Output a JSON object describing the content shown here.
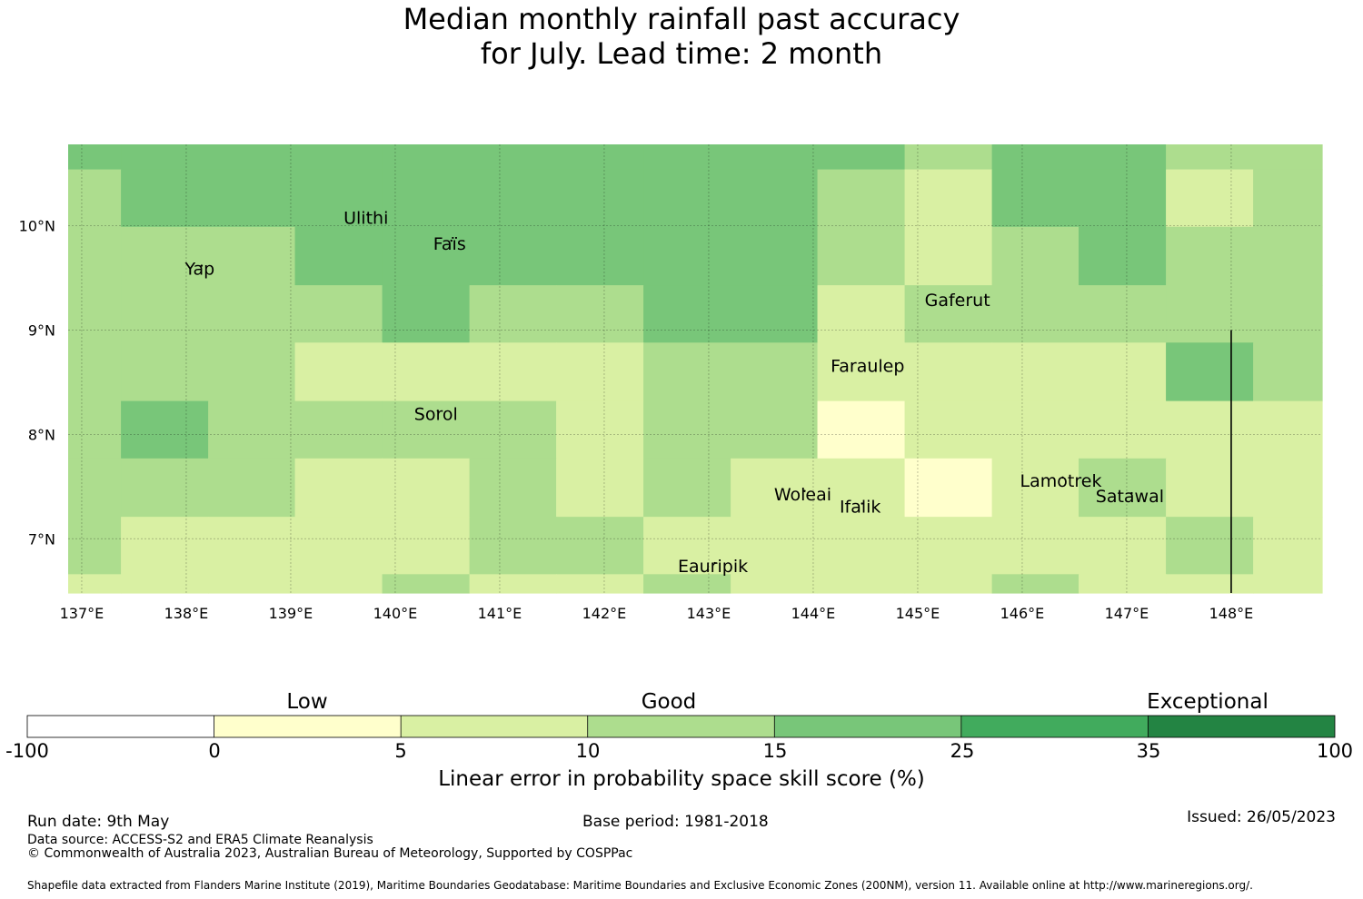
{
  "title": {
    "line1": "Median monthly rainfall past accuracy",
    "line2": "for July. Lead time: 2 month"
  },
  "map": {
    "lon_ticks": [
      "137°E",
      "138°E",
      "139°E",
      "140°E",
      "141°E",
      "142°E",
      "143°E",
      "144°E",
      "145°E",
      "146°E",
      "147°E",
      "148°E"
    ],
    "lat_ticks": [
      "10°N",
      "9°N",
      "8°N",
      "7°N"
    ],
    "lon_range": [
      136.87,
      148.87
    ],
    "lat_range": [
      6.48,
      10.78
    ],
    "grid_lon_edges": [
      136.87,
      137.375,
      138.21,
      139.04,
      139.875,
      140.71,
      141.54,
      142.375,
      143.21,
      144.04,
      144.875,
      145.71,
      146.54,
      147.375,
      148.21,
      148.87
    ],
    "grid_lat_edges": [
      10.78,
      10.54,
      9.99,
      9.43,
      8.88,
      8.32,
      7.77,
      7.21,
      6.66,
      6.48
    ],
    "grid_levels": [
      [
        4,
        4,
        4,
        4,
        4,
        4,
        4,
        4,
        4,
        4,
        3,
        4,
        4,
        3,
        3
      ],
      [
        3,
        4,
        4,
        4,
        4,
        4,
        4,
        4,
        4,
        3,
        2,
        4,
        4,
        2,
        3
      ],
      [
        3,
        3,
        3,
        4,
        4,
        4,
        4,
        4,
        4,
        3,
        2,
        3,
        4,
        3,
        3
      ],
      [
        3,
        3,
        3,
        3,
        4,
        3,
        3,
        4,
        4,
        2,
        3,
        3,
        3,
        3,
        3
      ],
      [
        3,
        3,
        3,
        2,
        2,
        2,
        2,
        3,
        3,
        2,
        2,
        2,
        2,
        4,
        3
      ],
      [
        3,
        4,
        3,
        3,
        3,
        3,
        2,
        3,
        3,
        1,
        2,
        2,
        2,
        2,
        2
      ],
      [
        3,
        3,
        3,
        2,
        2,
        3,
        2,
        3,
        2,
        2,
        1,
        2,
        3,
        2,
        2
      ],
      [
        3,
        2,
        2,
        2,
        2,
        3,
        3,
        2,
        2,
        2,
        2,
        2,
        2,
        3,
        2
      ],
      [
        2,
        2,
        2,
        2,
        3,
        2,
        2,
        3,
        2,
        2,
        2,
        3,
        2,
        2,
        2
      ]
    ],
    "islands": [
      {
        "name": "Ulithi",
        "lon": 139.72,
        "lat": 10.02
      },
      {
        "name": "Faïs",
        "lon": 140.52,
        "lat": 9.77
      },
      {
        "name": "Yap",
        "lon": 138.13,
        "lat": 9.53
      },
      {
        "name": "Gaferut",
        "lon": 145.38,
        "lat": 9.23
      },
      {
        "name": "Faraulep",
        "lon": 144.52,
        "lat": 8.6
      },
      {
        "name": "Sorol",
        "lon": 140.39,
        "lat": 8.14
      },
      {
        "name": "Woleai",
        "lon": 143.9,
        "lat": 7.37
      },
      {
        "name": "Ifalik",
        "lon": 144.45,
        "lat": 7.25
      },
      {
        "name": "Lamotrek",
        "lon": 146.37,
        "lat": 7.5
      },
      {
        "name": "Satawal",
        "lon": 147.03,
        "lat": 7.35
      },
      {
        "name": "Eauripik",
        "lon": 143.04,
        "lat": 6.68
      }
    ],
    "boundary_line": {
      "lon": 148.0,
      "lat_from": 9.0,
      "lat_to": 6.48
    }
  },
  "colorbar": {
    "colors": [
      "#ffffff",
      "#ffffcc",
      "#d9f0a3",
      "#addd8e",
      "#78c679",
      "#41ab5d",
      "#238443"
    ],
    "ticks": [
      "-100",
      "0",
      "5",
      "10",
      "15",
      "25",
      "35",
      "100"
    ],
    "categories": [
      "Low",
      "Good",
      "Exceptional"
    ],
    "label": "Linear error in probability space skill score (%)"
  },
  "footer": {
    "run_date": "Run date: 9th May",
    "base_period": "Base period: 1981-2018",
    "issued": "Issued: 26/05/2023",
    "data_source": "Data source: ACCESS-S2 and ERA5 Climate Reanalysis",
    "copyright": "© Commonwealth of Australia 2023, Australian Bureau of Meteorology, Supported by COSPPac",
    "shapefile": "Shapefile data extracted from Flanders Marine Institute (2019), Maritime Boundaries Geodatabase: Maritime Boundaries and Exclusive Economic Zones (200NM), version 11. Available online at http://www.marineregions.org/."
  }
}
